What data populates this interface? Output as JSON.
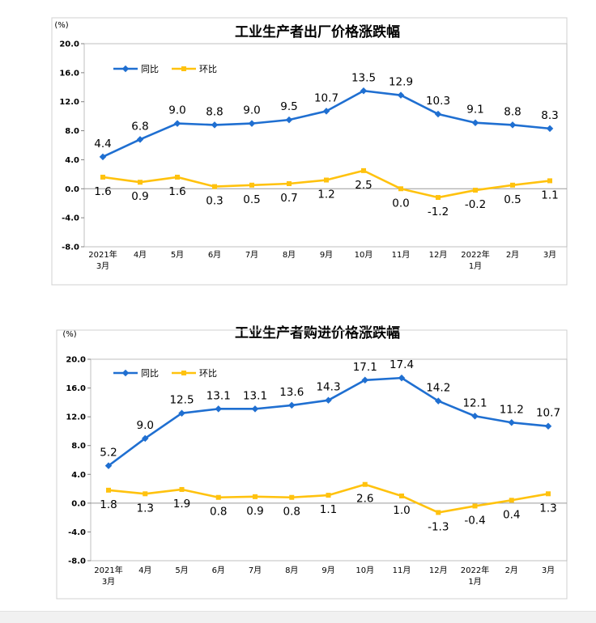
{
  "chart_data": [
    {
      "type": "line",
      "title": "工业生产者出厂价格涨跌幅",
      "unit": "(%)",
      "categories": [
        [
          "2021年",
          "3月"
        ],
        [
          "4月"
        ],
        [
          "5月"
        ],
        [
          "6月"
        ],
        [
          "7月"
        ],
        [
          "8月"
        ],
        [
          "9月"
        ],
        [
          "10月"
        ],
        [
          "11月"
        ],
        [
          "12月"
        ],
        [
          "2022年",
          "1月"
        ],
        [
          "2月"
        ],
        [
          "3月"
        ]
      ],
      "ylim": [
        -8.0,
        20.0
      ],
      "yticks": [
        "20.0",
        "16.0",
        "12.0",
        "8.0",
        "4.0",
        "0.0",
        "-4.0",
        "-8.0"
      ],
      "legend_position": "top-left",
      "series": [
        {
          "name": "同比",
          "color": "#1f6fd1",
          "values": [
            4.4,
            6.8,
            9.0,
            8.8,
            9.0,
            9.5,
            10.7,
            13.5,
            12.9,
            10.3,
            9.1,
            8.8,
            8.3
          ],
          "labels": [
            "4.4",
            "6.8",
            "9.0",
            "8.8",
            "9.0",
            "9.5",
            "10.7",
            "13.5",
            "12.9",
            "10.3",
            "9.1",
            "8.8",
            "8.3"
          ]
        },
        {
          "name": "环比",
          "color": "#ffc20e",
          "values": [
            1.6,
            0.9,
            1.6,
            0.3,
            0.5,
            0.7,
            1.2,
            2.5,
            0.0,
            -1.2,
            -0.2,
            0.5,
            1.1
          ],
          "labels": [
            "1.6",
            "0.9",
            "1.6",
            "0.3",
            "0.5",
            "0.7",
            "1.2",
            "2.5",
            "0.0",
            "-1.2",
            "-0.2",
            "0.5",
            "1.1"
          ]
        }
      ]
    },
    {
      "type": "line",
      "title": "工业生产者购进价格涨跌幅",
      "unit": "(%)",
      "categories": [
        [
          "2021年",
          "3月"
        ],
        [
          "4月"
        ],
        [
          "5月"
        ],
        [
          "6月"
        ],
        [
          "7月"
        ],
        [
          "8月"
        ],
        [
          "9月"
        ],
        [
          "10月"
        ],
        [
          "11月"
        ],
        [
          "12月"
        ],
        [
          "2022年",
          "1月"
        ],
        [
          "2月"
        ],
        [
          "3月"
        ]
      ],
      "ylim": [
        -8.0,
        20.0
      ],
      "yticks": [
        "20.0",
        "16.0",
        "12.0",
        "8.0",
        "4.0",
        "0.0",
        "-4.0",
        "-8.0"
      ],
      "legend_position": "top-left",
      "series": [
        {
          "name": "同比",
          "color": "#1f6fd1",
          "values": [
            5.2,
            9.0,
            12.5,
            13.1,
            13.1,
            13.6,
            14.3,
            17.1,
            17.4,
            14.2,
            12.1,
            11.2,
            10.7
          ],
          "labels": [
            "5.2",
            "9.0",
            "12.5",
            "13.1",
            "13.1",
            "13.6",
            "14.3",
            "17.1",
            "17.4",
            "14.2",
            "12.1",
            "11.2",
            "10.7"
          ]
        },
        {
          "name": "环比",
          "color": "#ffc20e",
          "values": [
            1.8,
            1.3,
            1.9,
            0.8,
            0.9,
            0.8,
            1.1,
            2.6,
            1.0,
            -1.3,
            -0.4,
            0.4,
            1.3
          ],
          "labels": [
            "1.8",
            "1.3",
            "1.9",
            "0.8",
            "0.9",
            "0.8",
            "1.1",
            "2.6",
            "1.0",
            "-1.3",
            "-0.4",
            "0.4",
            "1.3"
          ]
        }
      ]
    }
  ]
}
